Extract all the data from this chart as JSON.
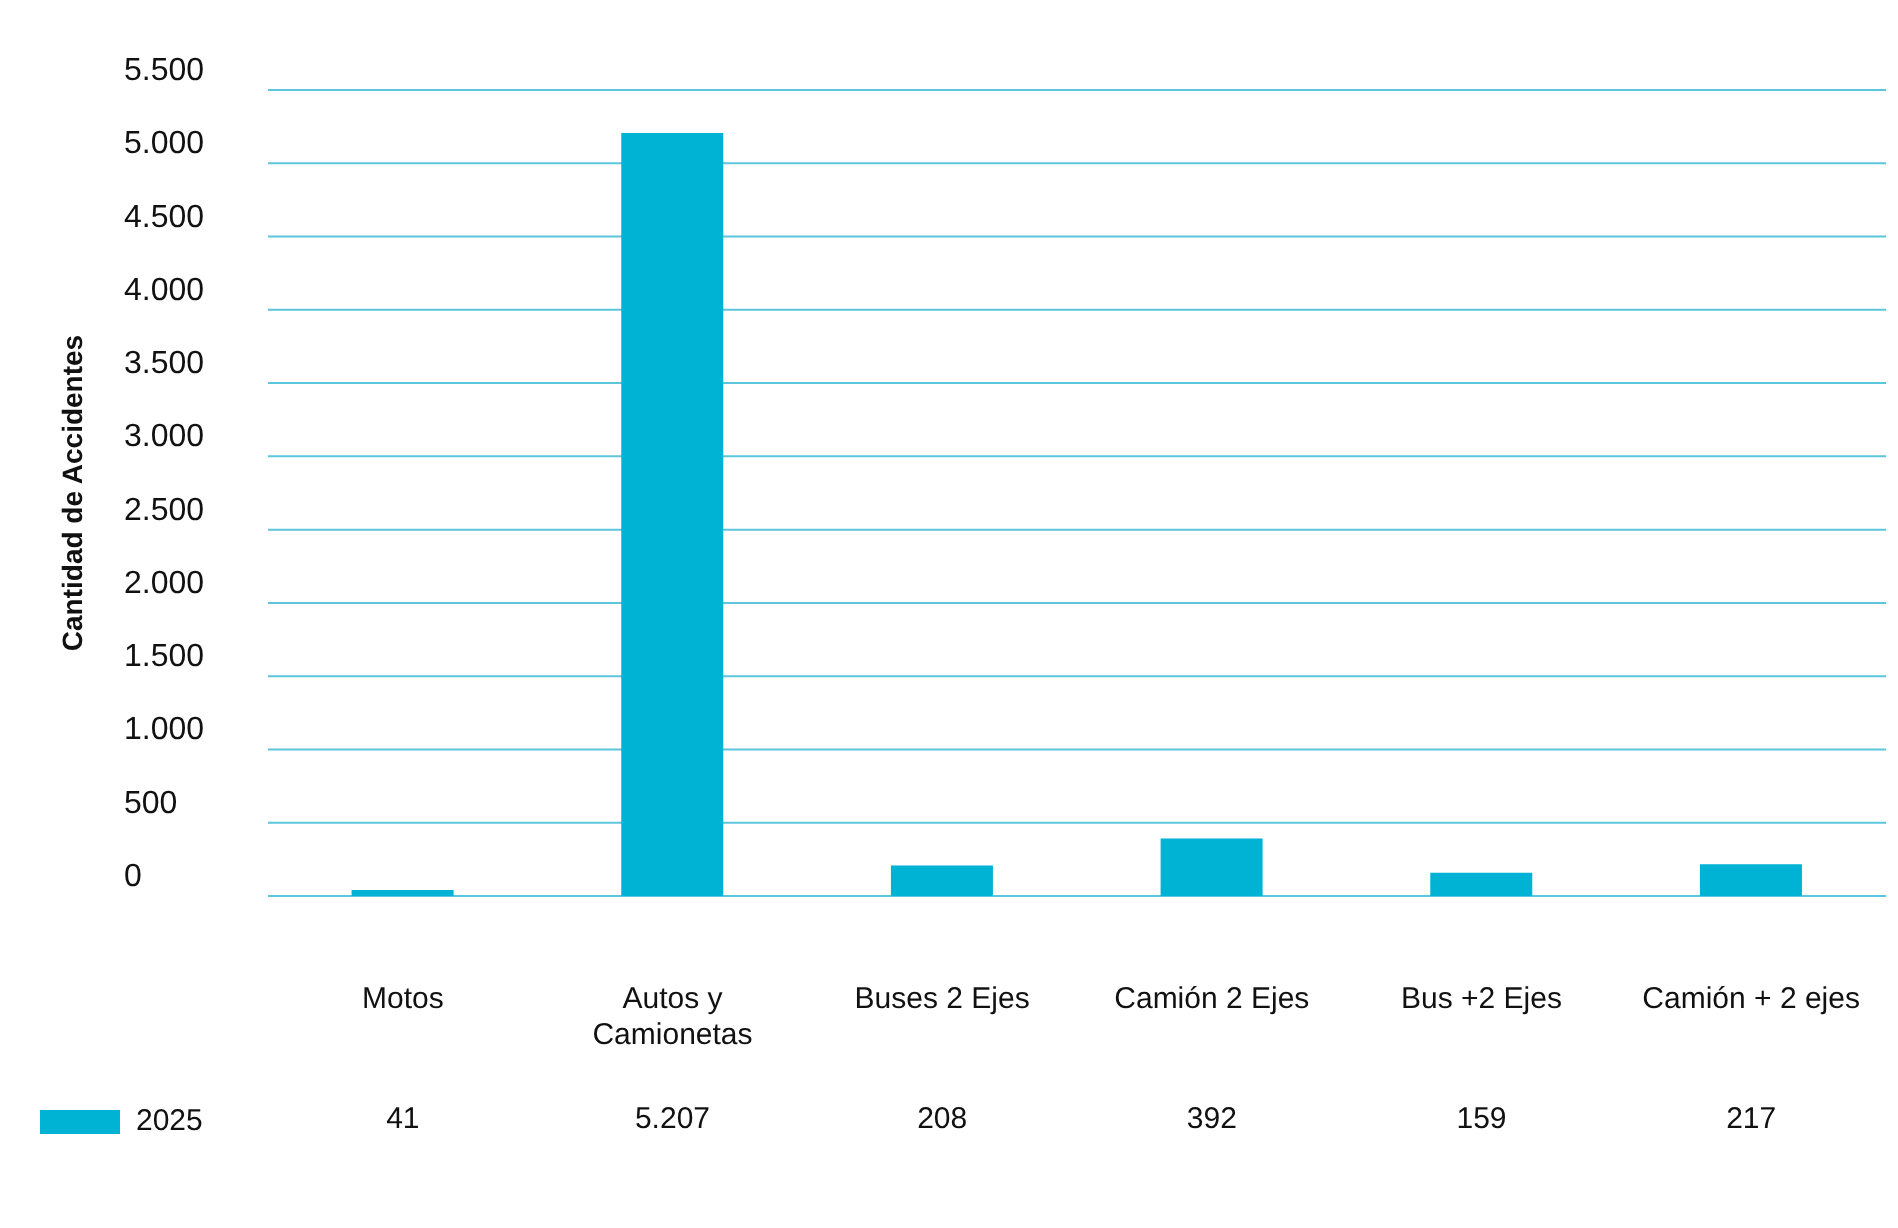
{
  "chart_data": {
    "type": "bar",
    "ylabel": "Cantidad de Accidentes",
    "categories": [
      "Motos",
      "Autos y Camionetas",
      "Buses 2 Ejes",
      "Camión 2 Ejes",
      "Bus +2 Ejes",
      "Camión + 2 ejes"
    ],
    "series": [
      {
        "name": "2025",
        "color": "#00b2d3",
        "values": [
          41,
          5207,
          208,
          392,
          159,
          217
        ],
        "value_labels": [
          "41",
          "5.207",
          "208",
          "392",
          "159",
          "217"
        ]
      }
    ],
    "ylim": [
      0,
      5500
    ],
    "yticks": [
      {
        "value": 0,
        "label": "0"
      },
      {
        "value": 500,
        "label": "500"
      },
      {
        "value": 1000,
        "label": "1.000"
      },
      {
        "value": 1500,
        "label": "1.500"
      },
      {
        "value": 2000,
        "label": "2.000"
      },
      {
        "value": 2500,
        "label": "2.500"
      },
      {
        "value": 3000,
        "label": "3.000"
      },
      {
        "value": 3500,
        "label": "3.500"
      },
      {
        "value": 4000,
        "label": "4.000"
      },
      {
        "value": 4500,
        "label": "4.500"
      },
      {
        "value": 5000,
        "label": "5.000"
      },
      {
        "value": 5500,
        "label": "5.500"
      }
    ],
    "grid": "y",
    "legend": "bottom left"
  }
}
